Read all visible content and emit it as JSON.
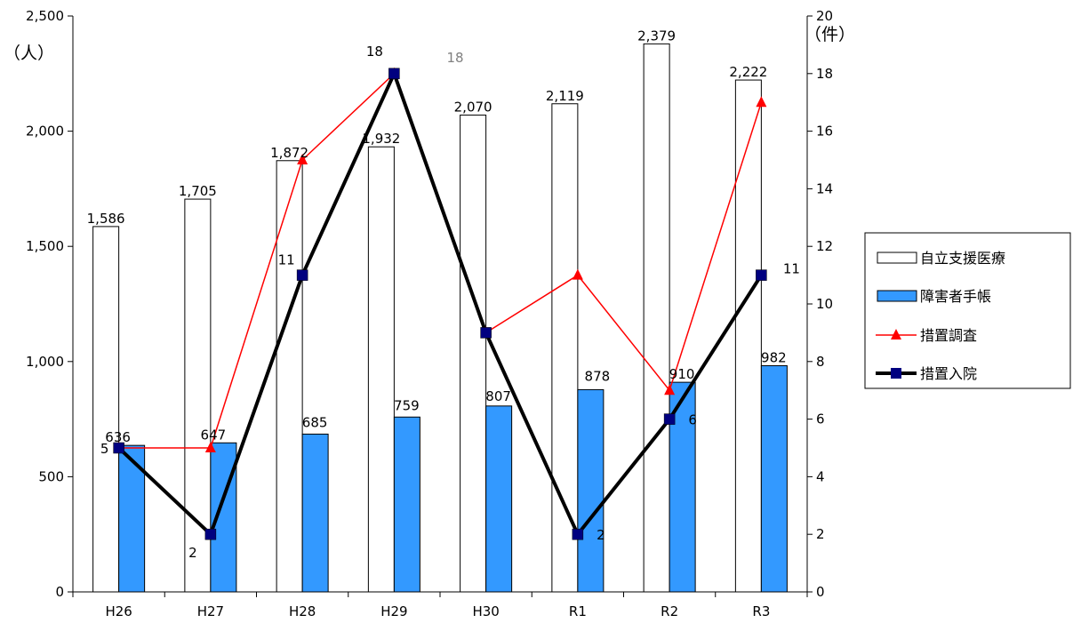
{
  "chart_data": {
    "type": "bar",
    "categories": [
      "H26",
      "H27",
      "H28",
      "H29",
      "H30",
      "R1",
      "R2",
      "R3"
    ],
    "y_left": {
      "unit": "（人）",
      "min": 0,
      "max": 2500,
      "ticks": [
        "0",
        "500",
        "1,000",
        "1,500",
        "2,000",
        "2,500"
      ]
    },
    "y_right": {
      "unit": "（件）",
      "min": 0,
      "max": 20,
      "ticks": [
        "0",
        "2",
        "4",
        "6",
        "8",
        "10",
        "12",
        "14",
        "16",
        "18",
        "20"
      ]
    },
    "grid": false,
    "legend_position": "right",
    "series": [
      {
        "name": "自立支援医療",
        "type": "bar",
        "axis": "left",
        "color": "#ffffff",
        "values": [
          1586,
          1705,
          1872,
          1932,
          2070,
          2119,
          2379,
          2222
        ],
        "labels": [
          "1,586",
          "1,705",
          "1,872",
          "1,932",
          "2,070",
          "2,119",
          "2,379",
          "2,222"
        ]
      },
      {
        "name": "障害者手帳",
        "type": "bar",
        "axis": "left",
        "color": "#3399ff",
        "values": [
          636,
          647,
          685,
          759,
          807,
          878,
          910,
          982
        ],
        "labels": [
          "636",
          "647",
          "685",
          "759",
          "807",
          "878",
          "910",
          "982"
        ]
      },
      {
        "name": "措置調査",
        "type": "line",
        "axis": "right",
        "color": "#ff0000",
        "marker": "triangle",
        "values": [
          5,
          5,
          15,
          18,
          9,
          11,
          7,
          17
        ]
      },
      {
        "name": "措置入院",
        "type": "line",
        "axis": "right",
        "color": "#000000",
        "marker_color": "#000080",
        "marker": "square",
        "values": [
          5,
          2,
          11,
          18,
          9,
          2,
          6,
          11
        ],
        "labels": [
          "5",
          "2",
          "11",
          "18",
          "",
          "2",
          "6",
          "11"
        ]
      }
    ],
    "annotations": [
      {
        "text": "18",
        "color": "#808080"
      }
    ]
  }
}
